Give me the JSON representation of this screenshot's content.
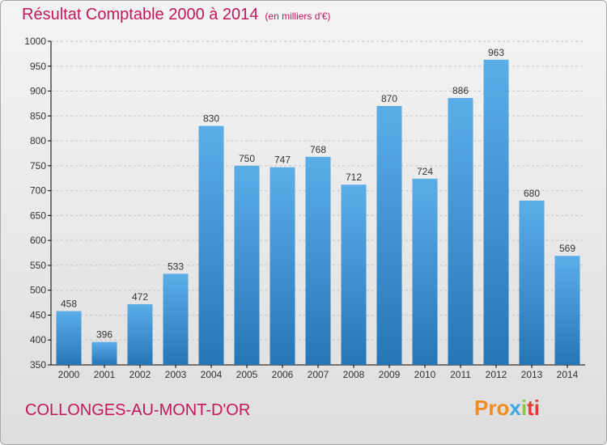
{
  "header": {
    "title": "Résultat Comptable 2000 à 2014",
    "unit": "(en milliers d'€)"
  },
  "footer": {
    "city": "COLLONGES-AU-MONT-D'OR",
    "logo": [
      "Pro",
      "x",
      "i",
      "ti"
    ]
  },
  "colors": {
    "bar_top": "#5aaee8",
    "bar_bottom": "#2676b8",
    "title": "#c2185b",
    "grid": "#c8c8c8",
    "axis": "#000000"
  },
  "chart_data": {
    "type": "bar",
    "categories": [
      "2000",
      "2001",
      "2002",
      "2003",
      "2004",
      "2005",
      "2006",
      "2007",
      "2008",
      "2009",
      "2010",
      "2011",
      "2012",
      "2013",
      "2014"
    ],
    "values": [
      458,
      396,
      472,
      533,
      830,
      750,
      747,
      768,
      712,
      870,
      724,
      886,
      963,
      680,
      569
    ],
    "yticks": [
      350,
      400,
      450,
      500,
      550,
      600,
      650,
      700,
      750,
      800,
      850,
      900,
      950,
      1000
    ],
    "ylim": [
      350,
      1000
    ],
    "grid": true,
    "legend": "none"
  }
}
